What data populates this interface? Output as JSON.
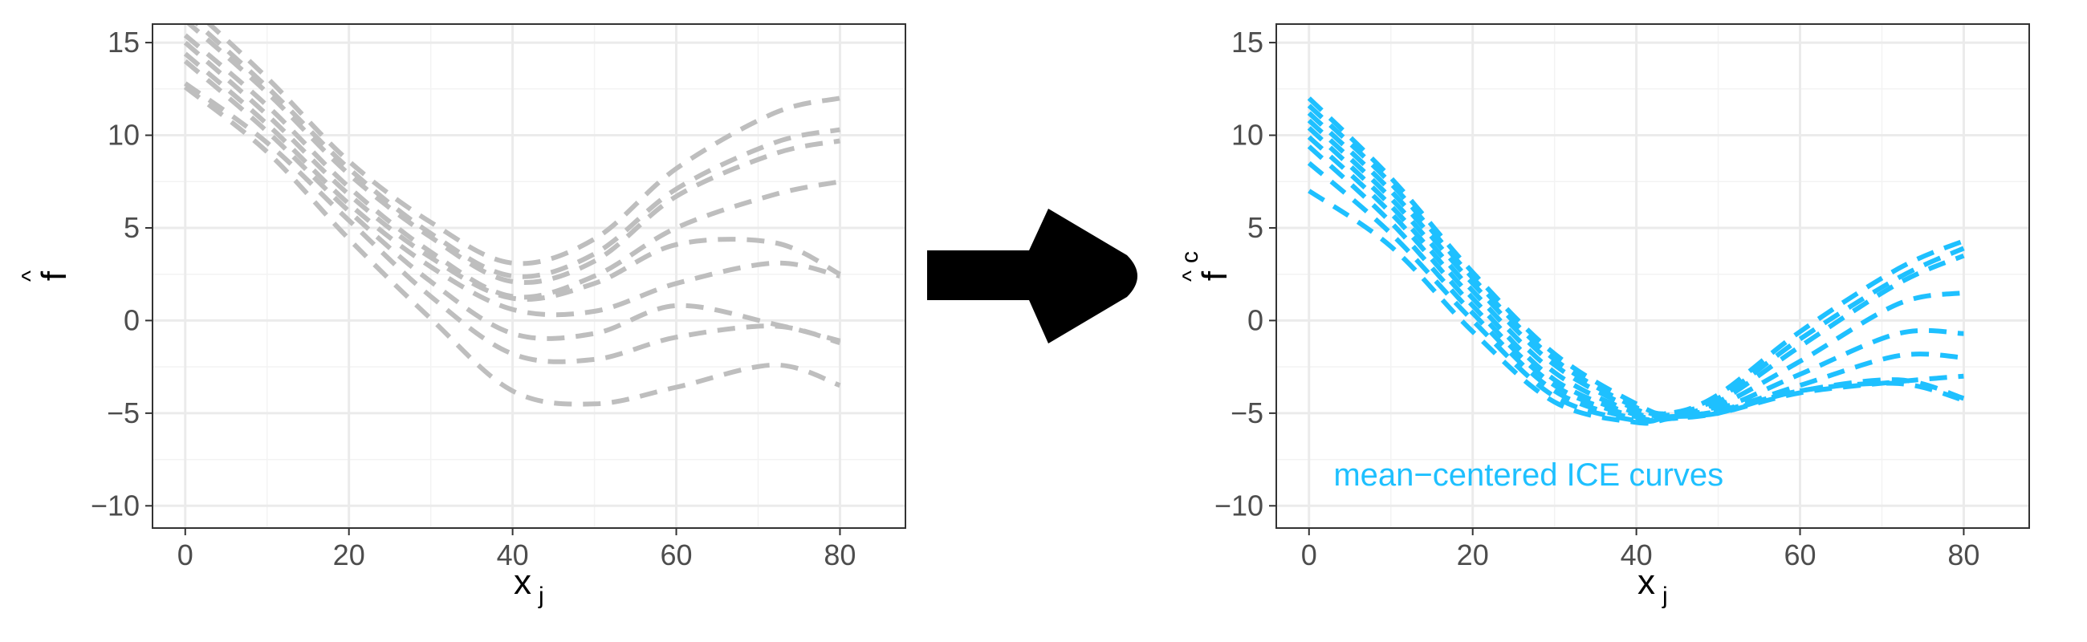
{
  "chart_data": [
    {
      "type": "line",
      "title": "",
      "xlabel": "x",
      "xlabel_sub": "j",
      "ylabel": "f",
      "ylabel_hat": "^",
      "xlim": [
        -4,
        88
      ],
      "ylim": [
        -11.2,
        16
      ],
      "xticks": [
        0,
        20,
        40,
        60,
        80
      ],
      "yticks": [
        -10,
        -5,
        0,
        5,
        10,
        15
      ],
      "grid": true,
      "legend": "none",
      "line_color": "#bebebe",
      "line_style": "dashed",
      "x": [
        0,
        10,
        20,
        30,
        40,
        50,
        60,
        72,
        80
      ],
      "series": [
        {
          "values": [
            17.2,
            13.1,
            8.6,
            5.3,
            3.1,
            4.4,
            8.2,
            11.2,
            12.0
          ]
        },
        {
          "values": [
            16.6,
            12.6,
            8.2,
            4.7,
            2.4,
            3.6,
            7.1,
            9.6,
            10.3
          ]
        },
        {
          "values": [
            16.2,
            12.3,
            7.9,
            4.5,
            2.1,
            3.2,
            6.7,
            9.0,
            9.7
          ]
        },
        {
          "values": [
            15.4,
            11.6,
            7.2,
            3.7,
            1.3,
            2.4,
            5.0,
            6.8,
            7.5
          ]
        },
        {
          "values": [
            15.0,
            11.1,
            6.8,
            3.4,
            1.2,
            2.0,
            4.1,
            4.2,
            2.5
          ]
        },
        {
          "values": [
            14.4,
            10.6,
            6.3,
            2.9,
            0.6,
            0.5,
            2.0,
            3.1,
            2.4
          ]
        },
        {
          "values": [
            14.0,
            10.2,
            5.9,
            2.1,
            -0.7,
            -0.7,
            0.8,
            -0.2,
            -1.1
          ]
        },
        {
          "values": [
            12.8,
            9.6,
            5.4,
            1.3,
            -1.8,
            -2.1,
            -0.9,
            -0.3,
            -1.2
          ]
        },
        {
          "values": [
            12.6,
            9.1,
            4.4,
            0.1,
            -3.8,
            -4.5,
            -3.6,
            -2.4,
            -3.5
          ]
        }
      ]
    },
    {
      "type": "line",
      "title": "",
      "xlabel": "x",
      "xlabel_sub": "j",
      "ylabel": "f",
      "ylabel_hat": "^",
      "ylabel_sup": "c",
      "xlim": [
        -4,
        88
      ],
      "ylim": [
        -11.2,
        16
      ],
      "xticks": [
        0,
        20,
        40,
        60,
        80
      ],
      "yticks": [
        -10,
        -5,
        0,
        5,
        10,
        15
      ],
      "grid": true,
      "legend": "none",
      "line_color": "#1ec0ff",
      "line_style": "dashed",
      "annotation": {
        "text": "mean−centered ICE curves",
        "color": "#1ec0ff"
      },
      "x": [
        0,
        10,
        20,
        30,
        40,
        44,
        50,
        60,
        72,
        80
      ],
      "series": [
        {
          "values": [
            12.0,
            7.7,
            2.6,
            -1.8,
            -4.5,
            -5.0,
            -4.0,
            -0.6,
            2.8,
            4.3
          ]
        },
        {
          "values": [
            11.6,
            7.4,
            2.3,
            -2.1,
            -4.7,
            -5.0,
            -4.2,
            -1.0,
            2.3,
            3.9
          ]
        },
        {
          "values": [
            11.2,
            7.0,
            2.0,
            -2.4,
            -4.8,
            -5.1,
            -4.4,
            -1.4,
            2.0,
            3.5
          ]
        },
        {
          "values": [
            10.8,
            6.6,
            1.6,
            -2.8,
            -5.0,
            -5.2,
            -4.6,
            -2.2,
            0.9,
            1.5
          ]
        },
        {
          "values": [
            10.4,
            6.2,
            1.2,
            -3.2,
            -5.1,
            -5.2,
            -4.8,
            -2.9,
            -0.7,
            -0.7
          ]
        },
        {
          "values": [
            9.9,
            5.8,
            0.8,
            -3.5,
            -5.2,
            -5.3,
            -4.9,
            -3.5,
            -1.9,
            -2.0
          ]
        },
        {
          "values": [
            9.4,
            5.3,
            0.4,
            -3.8,
            -5.3,
            -5.2,
            -4.9,
            -3.8,
            -3.2,
            -4.2
          ]
        },
        {
          "values": [
            8.5,
            4.7,
            0.0,
            -4.1,
            -5.4,
            -5.2,
            -5.0,
            -3.9,
            -3.3,
            -3.0
          ]
        },
        {
          "values": [
            7.0,
            4.0,
            -0.6,
            -4.4,
            -5.5,
            -5.3,
            -5.0,
            -3.8,
            -3.4,
            -4.3
          ]
        }
      ]
    }
  ],
  "arrow": {
    "color": "#000000",
    "direction": "right"
  }
}
